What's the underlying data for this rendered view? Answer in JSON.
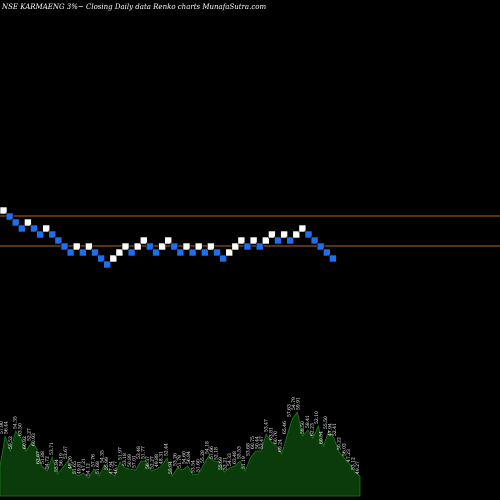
{
  "chart_data": {
    "type": "renko",
    "title": "NSE KARMAENG 3%~  Closing Daily data  Renko  charts MunafaSutra.com",
    "colors": {
      "background": "#000000",
      "up_brick": "#ffffff",
      "down_brick": "#1e6ff0",
      "reference_line": "#b5651d",
      "volume_fill": "#0b3a0b",
      "volume_stroke": "#1e7a1e"
    },
    "reference_line_levels": [
      216,
      246
    ],
    "bricks": [
      {
        "level": 210,
        "dir": "up"
      },
      {
        "level": 216,
        "dir": "down"
      },
      {
        "level": 222,
        "dir": "down"
      },
      {
        "level": 228,
        "dir": "down"
      },
      {
        "level": 222,
        "dir": "up"
      },
      {
        "level": 228,
        "dir": "down"
      },
      {
        "level": 234,
        "dir": "down"
      },
      {
        "level": 228,
        "dir": "up"
      },
      {
        "level": 234,
        "dir": "down"
      },
      {
        "level": 240,
        "dir": "down"
      },
      {
        "level": 246,
        "dir": "down"
      },
      {
        "level": 252,
        "dir": "down"
      },
      {
        "level": 246,
        "dir": "up"
      },
      {
        "level": 252,
        "dir": "down"
      },
      {
        "level": 246,
        "dir": "up"
      },
      {
        "level": 252,
        "dir": "down"
      },
      {
        "level": 258,
        "dir": "down"
      },
      {
        "level": 264,
        "dir": "down"
      },
      {
        "level": 258,
        "dir": "up"
      },
      {
        "level": 252,
        "dir": "up"
      },
      {
        "level": 246,
        "dir": "up"
      },
      {
        "level": 252,
        "dir": "down"
      },
      {
        "level": 246,
        "dir": "up"
      },
      {
        "level": 240,
        "dir": "up"
      },
      {
        "level": 246,
        "dir": "down"
      },
      {
        "level": 252,
        "dir": "down"
      },
      {
        "level": 246,
        "dir": "up"
      },
      {
        "level": 240,
        "dir": "up"
      },
      {
        "level": 246,
        "dir": "down"
      },
      {
        "level": 252,
        "dir": "down"
      },
      {
        "level": 246,
        "dir": "up"
      },
      {
        "level": 252,
        "dir": "down"
      },
      {
        "level": 246,
        "dir": "up"
      },
      {
        "level": 252,
        "dir": "down"
      },
      {
        "level": 246,
        "dir": "up"
      },
      {
        "level": 252,
        "dir": "down"
      },
      {
        "level": 258,
        "dir": "down"
      },
      {
        "level": 252,
        "dir": "up"
      },
      {
        "level": 246,
        "dir": "up"
      },
      {
        "level": 240,
        "dir": "up"
      },
      {
        "level": 246,
        "dir": "down"
      },
      {
        "level": 240,
        "dir": "up"
      },
      {
        "level": 246,
        "dir": "down"
      },
      {
        "level": 240,
        "dir": "up"
      },
      {
        "level": 234,
        "dir": "up"
      },
      {
        "level": 240,
        "dir": "down"
      },
      {
        "level": 234,
        "dir": "up"
      },
      {
        "level": 240,
        "dir": "down"
      },
      {
        "level": 234,
        "dir": "up"
      },
      {
        "level": 228,
        "dir": "up"
      },
      {
        "level": 234,
        "dir": "down"
      },
      {
        "level": 240,
        "dir": "down"
      },
      {
        "level": 246,
        "dir": "down"
      },
      {
        "level": 252,
        "dir": "down"
      },
      {
        "level": 258,
        "dir": "down"
      }
    ],
    "volume_labels": [
      "57.90",
      "56.44",
      "59.52",
      "54.35",
      "63.50",
      "60.82",
      "52.27",
      "60.93",
      "62.67",
      "51.88",
      "54.72",
      "53.71",
      "55.84",
      "56.19",
      "53.67",
      "49.20",
      "51.65",
      "49.81",
      "47.21",
      "54.12",
      "57.76",
      "51.68",
      "54.35",
      "55.99",
      "47.94",
      "46.77",
      "51.97",
      "53.18",
      "50.89",
      "57.01",
      "53.48",
      "51.77",
      "56.37",
      "52.27",
      "49.88",
      "48.31",
      "52.44",
      "55.94",
      "53.26",
      "51.79",
      "54.60",
      "56.84",
      "53.54",
      "51.60",
      "55.28",
      "54.18",
      "57.66",
      "52.18",
      "55.69",
      "52.21",
      "54.33",
      "63.48",
      "55.53",
      "51.19",
      "53.68",
      "60.75",
      "50.44",
      "53.47",
      "53.47",
      "63.81",
      "60.70",
      "69.24",
      "65.46",
      "57.63",
      "54.79",
      "59.91",
      "58.50",
      "58.41",
      "62.23",
      "52.10",
      "60.54",
      "55.50",
      "47.94",
      "52.41",
      "50.22",
      "56.02",
      "47.23",
      "53.12",
      "49.27"
    ],
    "volume_values": [
      30,
      60,
      45,
      65,
      58,
      45,
      53,
      48,
      30,
      25,
      39,
      22,
      28,
      35,
      25,
      20,
      23,
      18,
      27,
      20,
      31,
      24,
      20,
      34,
      28,
      27,
      26,
      35,
      35,
      25,
      27,
      30,
      38,
      20,
      28,
      26,
      30,
      21,
      22,
      31,
      40,
      35,
      34,
      24,
      28,
      30,
      35,
      25,
      38,
      45,
      45,
      62,
      54,
      50,
      42,
      60,
      77,
      84,
      60,
      66,
      58,
      70,
      50,
      65,
      58,
      44,
      38,
      32,
      24,
      20
    ]
  }
}
